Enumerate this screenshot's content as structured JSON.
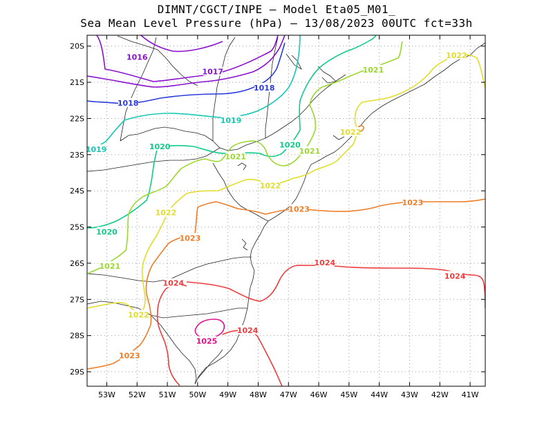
{
  "header": {
    "line1": "DIMNT/CGCT/INPE –  Model Eta05_M01_",
    "line2": "Sea Mean Level Pressure (hPa) – 13/08/2023 00UTC fct=33h"
  },
  "chart_data": {
    "type": "contour",
    "x_axis": {
      "ticks": [
        -53,
        -52,
        -51,
        -50,
        -49,
        -48,
        -47,
        -46,
        -45,
        -44,
        -43,
        -42,
        -41
      ],
      "tick_labels": [
        "53W",
        "52W",
        "51W",
        "50W",
        "49W",
        "48W",
        "47W",
        "46W",
        "45W",
        "44W",
        "43W",
        "42W",
        "41W"
      ],
      "range": [
        -53.65,
        -40.5
      ]
    },
    "y_axis": {
      "ticks": [
        -20,
        -21,
        -22,
        -23,
        -24,
        -25,
        -26,
        -27,
        -28,
        -29
      ],
      "tick_labels": [
        "20S",
        "21S",
        "22S",
        "23S",
        "24S",
        "25S",
        "26S",
        "27S",
        "28S",
        "29S"
      ],
      "range": [
        -29.4,
        -19.7
      ]
    },
    "grid": true,
    "contours": [
      {
        "level": 1016,
        "color": "#8a10d0",
        "labels": [
          {
            "text": "1016",
            "lon": -52.0,
            "lat": -20.3
          }
        ]
      },
      {
        "level": 1017,
        "color": "#8a10d0",
        "labels": [
          {
            "text": "1017",
            "lon": -49.5,
            "lat": -20.7
          }
        ]
      },
      {
        "level": 1018,
        "color": "#2b3bdc",
        "labels": [
          {
            "text": "1018",
            "lon": -52.3,
            "lat": -21.57
          },
          {
            "text": "1018",
            "lon": -47.8,
            "lat": -21.15
          }
        ]
      },
      {
        "level": 1019,
        "color": "#14c8b4",
        "labels": [
          {
            "text": "1019",
            "lon": -53.35,
            "lat": -22.85
          },
          {
            "text": "1019",
            "lon": -48.9,
            "lat": -22.05
          }
        ]
      },
      {
        "level": 1020,
        "color": "#10cc88",
        "labels": [
          {
            "text": "1020",
            "lon": -51.25,
            "lat": -22.77
          },
          {
            "text": "1020",
            "lon": -46.95,
            "lat": -22.73
          },
          {
            "text": "1020",
            "lon": -53.0,
            "lat": -25.13
          }
        ]
      },
      {
        "level": 1021,
        "color": "#9ad82c",
        "labels": [
          {
            "text": "1021",
            "lon": -48.75,
            "lat": -23.05
          },
          {
            "text": "1021",
            "lon": -46.3,
            "lat": -22.9
          },
          {
            "text": "1021",
            "lon": -52.9,
            "lat": -26.08
          },
          {
            "text": "1021",
            "lon": -44.2,
            "lat": -20.65
          }
        ]
      },
      {
        "level": 1022,
        "color": "#e2dc2a",
        "labels": [
          {
            "text": "1022",
            "lon": -47.6,
            "lat": -23.85
          },
          {
            "text": "1022",
            "lon": -51.05,
            "lat": -24.6
          },
          {
            "text": "1022",
            "lon": -44.95,
            "lat": -22.37
          },
          {
            "text": "1022",
            "lon": -51.95,
            "lat": -27.42
          },
          {
            "text": "1022",
            "lon": -41.45,
            "lat": -20.25
          }
        ]
      },
      {
        "level": 1023,
        "color": "#ee7d28",
        "labels": [
          {
            "text": "1023",
            "lon": -46.65,
            "lat": -24.5
          },
          {
            "text": "1023",
            "lon": -50.25,
            "lat": -25.3
          },
          {
            "text": "1023",
            "lon": -52.25,
            "lat": -28.55
          },
          {
            "text": "1023",
            "lon": -42.9,
            "lat": -24.32
          }
        ]
      },
      {
        "level": 1024,
        "color": "#ee3c3c",
        "labels": [
          {
            "text": "1024",
            "lon": -50.8,
            "lat": -26.55
          },
          {
            "text": "1024",
            "lon": -48.35,
            "lat": -27.85
          },
          {
            "text": "1024",
            "lon": -45.8,
            "lat": -25.98
          },
          {
            "text": "1024",
            "lon": -41.5,
            "lat": -26.35
          }
        ]
      },
      {
        "level": 1025,
        "color": "#e0108a",
        "labels": [
          {
            "text": "1025",
            "lon": -49.7,
            "lat": -28.15
          }
        ]
      }
    ]
  }
}
